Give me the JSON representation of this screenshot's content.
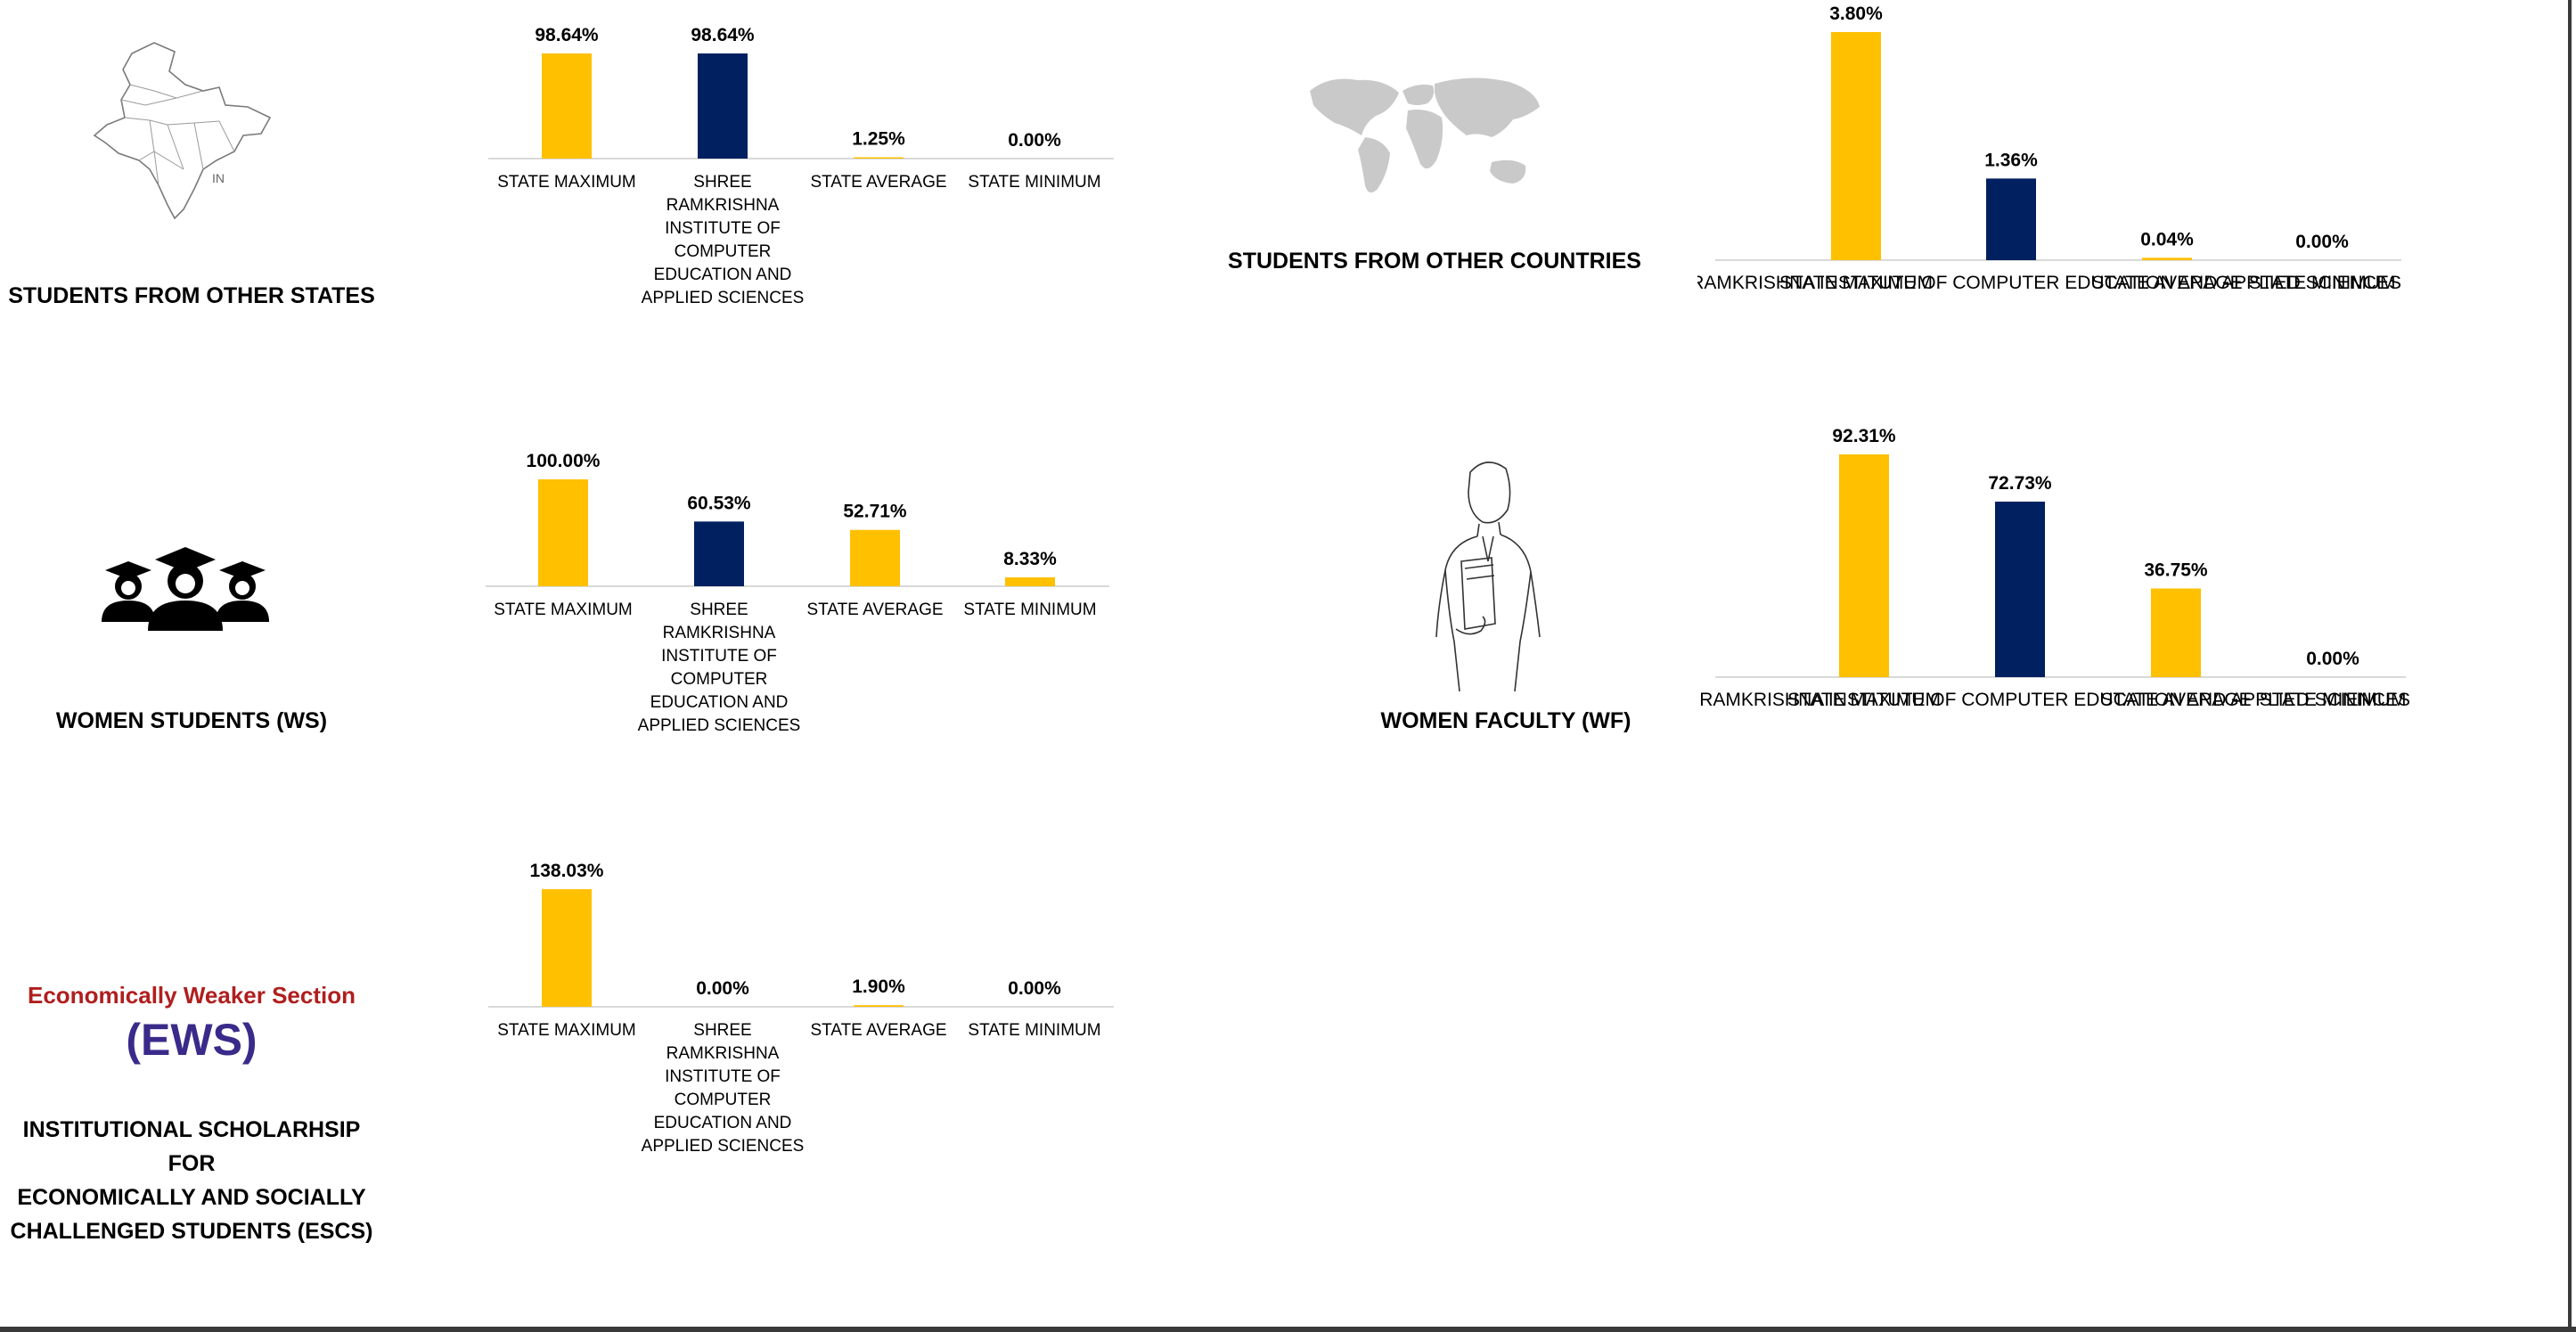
{
  "colors": {
    "state": "#FFC000",
    "institute": "#002060",
    "axis": "#D9D9D9",
    "text": "#000000"
  },
  "panels": {
    "other_states": {
      "label": "STUDENTS FROM OTHER STATES",
      "icon": "india-map-icon",
      "icon_text": "IN"
    },
    "other_countries": {
      "label": "STUDENTS FROM OTHER COUNTRIES",
      "icon": "world-map-icon"
    },
    "women_students": {
      "label": "WOMEN STUDENTS (WS)",
      "icon": "graduates-icon"
    },
    "women_faculty": {
      "label": "WOMEN FACULTY (WF)",
      "icon": "faculty-woman-icon"
    },
    "escs": {
      "label_lines": [
        "INSTITUTIONAL SCHOLARHSIP FOR",
        "ECONOMICALLY AND SOCIALLY",
        "CHALLENGED STUDENTS (ESCS)"
      ],
      "icon": "ews-logo",
      "logo_line1": "Economically Weaker Section",
      "logo_line2": "(EWS)"
    }
  },
  "chart_data": [
    {
      "id": "other_states",
      "type": "bar",
      "categories": [
        "STATE MAXIMUM",
        "SHREE RAMKRISHNA INSTITUTE OF COMPUTER EDUCATION AND APPLIED SCIENCES",
        "STATE AVERAGE",
        "STATE MINIMUM"
      ],
      "category_lines": [
        [
          "STATE MAXIMUM"
        ],
        [
          "SHREE",
          "RAMKRISHNA",
          "INSTITUTE OF",
          "COMPUTER",
          "EDUCATION AND",
          "APPLIED SCIENCES"
        ],
        [
          "STATE AVERAGE"
        ],
        [
          "STATE MINIMUM"
        ]
      ],
      "values": [
        98.64,
        98.64,
        1.25,
        0.0
      ],
      "labels": [
        "98.64%",
        "98.64%",
        "1.25%",
        "0.00%"
      ],
      "ymax": 98.64
    },
    {
      "id": "other_countries",
      "type": "bar",
      "categories": [
        "STATE MAXIMUM",
        "SHREE RAMKRISHNA INSTITUTE OF COMPUTER EDUCATION AND APPLIED SCIENCES",
        "STATE AVERAGE",
        "STATE MINIMUM"
      ],
      "category_lines": [
        [
          "STATE MAXIMUM"
        ],
        [
          "SHREE RAMKRISHNA INSTITUTE OF COMPUTER EDUCATION AND APPLIED SCIENCES"
        ],
        [
          "STATE AVERAGE"
        ],
        [
          "STATE MINIMUM"
        ]
      ],
      "values": [
        3.8,
        1.36,
        0.04,
        0.0
      ],
      "labels": [
        "3.80%",
        "1.36%",
        "0.04%",
        "0.00%"
      ],
      "ymax": 3.8
    },
    {
      "id": "women_students",
      "type": "bar",
      "categories": [
        "STATE MAXIMUM",
        "SHREE RAMKRISHNA INSTITUTE OF COMPUTER EDUCATION AND APPLIED SCIENCES",
        "STATE AVERAGE",
        "STATE MINIMUM"
      ],
      "category_lines": [
        [
          "STATE MAXIMUM"
        ],
        [
          "SHREE",
          "RAMKRISHNA",
          "INSTITUTE OF",
          "COMPUTER",
          "EDUCATION AND",
          "APPLIED SCIENCES"
        ],
        [
          "STATE AVERAGE"
        ],
        [
          "STATE MINIMUM"
        ]
      ],
      "values": [
        100.0,
        60.53,
        52.71,
        8.33
      ],
      "labels": [
        "100.00%",
        "60.53%",
        "52.71%",
        "8.33%"
      ],
      "ymax": 100.0
    },
    {
      "id": "women_faculty",
      "type": "bar",
      "categories": [
        "STATE MAXIMUM",
        "SHREE RAMKRISHNA INSTITUTE OF COMPUTER EDUCATION AND APPLIED SCIENCES",
        "STATE AVERAGE",
        "STATE MINIMUM"
      ],
      "category_lines": [
        [
          "STATE MAXIMUM"
        ],
        [
          "SHREE RAMKRISHNA INSTITUTE OF COMPUTER EDUCATION AND APPLIED SCIENCES"
        ],
        [
          "STATE AVERAGE"
        ],
        [
          "STATE MINIMUM"
        ]
      ],
      "values": [
        92.31,
        72.73,
        36.75,
        0.0
      ],
      "labels": [
        "92.31%",
        "72.73%",
        "36.75%",
        "0.00%"
      ],
      "ymax": 92.31
    },
    {
      "id": "escs",
      "type": "bar",
      "categories": [
        "STATE MAXIMUM",
        "SHREE RAMKRISHNA INSTITUTE OF COMPUTER EDUCATION AND APPLIED SCIENCES",
        "STATE AVERAGE",
        "STATE MINIMUM"
      ],
      "category_lines": [
        [
          "STATE MAXIMUM"
        ],
        [
          "SHREE",
          "RAMKRISHNA",
          "INSTITUTE OF",
          "COMPUTER",
          "EDUCATION AND",
          "APPLIED SCIENCES"
        ],
        [
          "STATE AVERAGE"
        ],
        [
          "STATE MINIMUM"
        ]
      ],
      "values": [
        138.03,
        0.0,
        1.9,
        0.0
      ],
      "labels": [
        "138.03%",
        "0.00%",
        "1.90%",
        "0.00%"
      ],
      "ymax": 138.03
    }
  ]
}
